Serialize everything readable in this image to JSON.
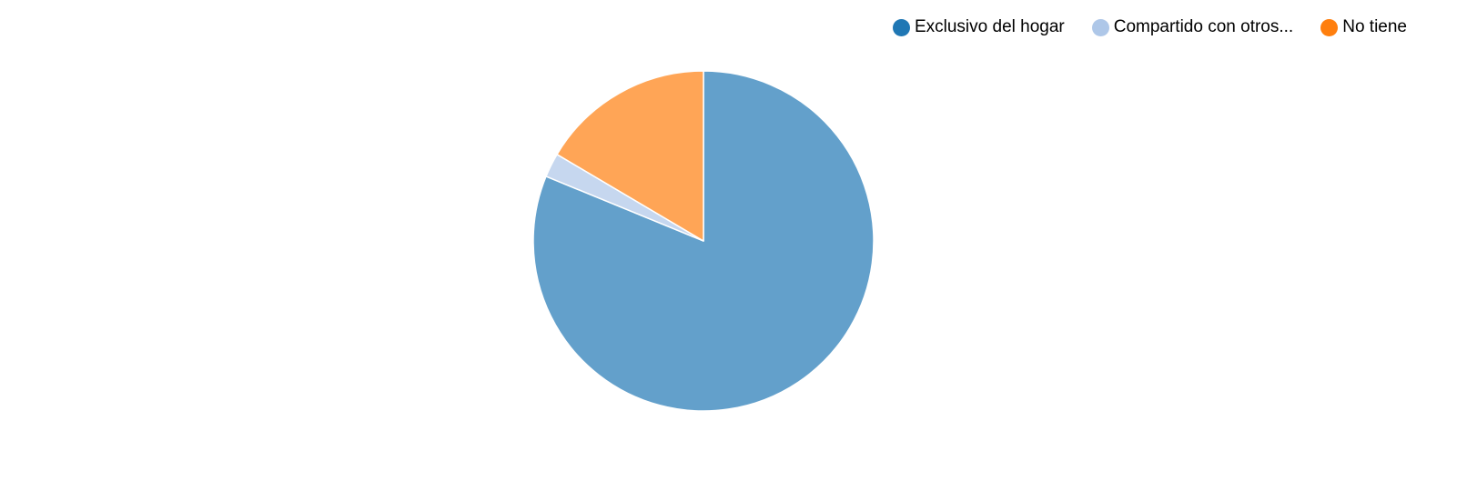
{
  "chart_data": {
    "type": "pie",
    "title": "",
    "categories": [
      "Exclusivo del hogar",
      "Compartido con otros...",
      "No tiene"
    ],
    "values": [
      81.2,
      2.3,
      16.5
    ],
    "slice_colors": [
      "#63a0cb",
      "#c6d7ef",
      "#ffa556"
    ],
    "legend_colors": [
      "#1f77b4",
      "#aec7e8",
      "#ff7f0e"
    ],
    "slice_stroke_color": "#ffffff",
    "start_angle_deg": 0,
    "direction": "clockwise",
    "legend_position": "top-right"
  }
}
